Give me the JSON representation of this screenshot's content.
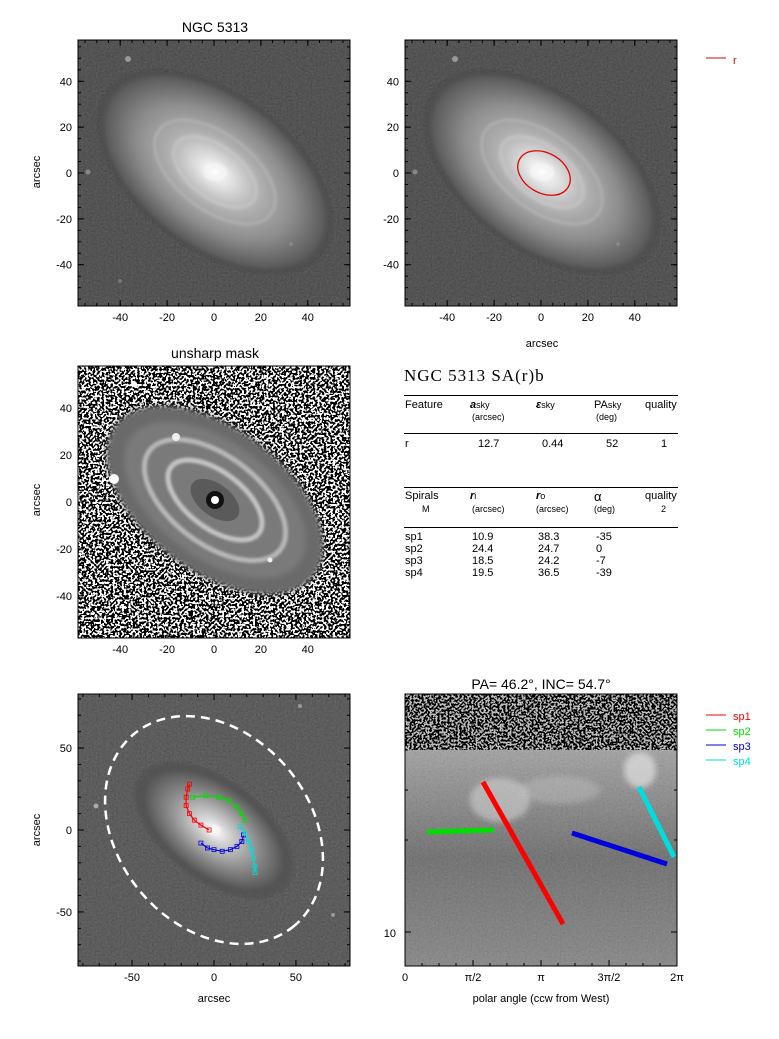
{
  "colors": {
    "r_feature": "#e00000",
    "sp1": "#ff0000",
    "sp2": "#00dd00",
    "sp3": "#0000dd",
    "sp4": "#00dddd",
    "ellipse": "#ffffff"
  },
  "panels": {
    "galaxy": {
      "title": "NGC 5313",
      "ylabel": "arcsec",
      "xticks": [
        -40,
        -20,
        0,
        20,
        40
      ],
      "yticks": [
        -40,
        -20,
        0,
        20,
        40
      ],
      "range": [
        -58,
        58
      ]
    },
    "overlay": {
      "xlabel": "arcsec",
      "xticks": [
        -40,
        -20,
        0,
        20,
        40
      ],
      "yticks": [
        -40,
        -20,
        0,
        20,
        40
      ],
      "legend": [
        {
          "label": "r",
          "color": "#e00000"
        }
      ],
      "ellipse": {
        "semi_major_arcsec": 12.7,
        "ellipticity": 0.44,
        "pa_deg": 52
      }
    },
    "unsharp": {
      "title": "unsharp mask",
      "ylabel": "arcsec",
      "xticks": [
        -40,
        -20,
        0,
        20,
        40
      ],
      "yticks": [
        -40,
        -20,
        0,
        20,
        40
      ]
    },
    "arms": {
      "xlabel": "arcsec",
      "ylabel": "arcsec",
      "xticks": [
        -50,
        0,
        50
      ],
      "yticks": [
        -50,
        0,
        50
      ],
      "range": [
        -83,
        83
      ]
    },
    "polar": {
      "title": "PA=  46.2°, INC=  54.7°",
      "xlabel": "polar angle (ccw from West)",
      "xticks": [
        "0",
        "π/2",
        "π",
        "3π/2",
        "2π"
      ],
      "ytick_label": "10",
      "legend": [
        {
          "label": "sp1",
          "color": "#ff0000"
        },
        {
          "label": "sp2",
          "color": "#00dd00"
        },
        {
          "label": "sp3",
          "color": "#0000dd"
        },
        {
          "label": "sp4",
          "color": "#00dddd"
        }
      ]
    }
  },
  "table": {
    "heading": "NGC 5313  SA(r)b",
    "features_header": {
      "feature": "Feature",
      "a": "a",
      "a_sub": "sky",
      "a_unit": "(arcsec)",
      "eps": "ε",
      "eps_sub": "sky",
      "pa": "PA",
      "pa_sub": "sky",
      "pa_unit": "(deg)",
      "quality": "quality"
    },
    "features": [
      {
        "name": "r",
        "a": "12.7",
        "eps": "0.44",
        "pa": "52",
        "quality": "1"
      }
    ],
    "spirals_header": {
      "spirals": "Spirals",
      "spirals_sub": "M",
      "ri": "r",
      "ri_sub": "i",
      "ri_unit": "(arcsec)",
      "ro": "r",
      "ro_sub": "o",
      "ro_unit": "(arcsec)",
      "alpha": "α",
      "alpha_unit": "(deg)",
      "quality": "quality",
      "quality_sub": "2"
    },
    "spirals": [
      {
        "name": "sp1",
        "ri": "10.9",
        "ro": "38.3",
        "alpha": "-35"
      },
      {
        "name": "sp2",
        "ri": "24.4",
        "ro": "24.7",
        "alpha": "0"
      },
      {
        "name": "sp3",
        "ri": "18.5",
        "ro": "24.2",
        "alpha": "-7"
      },
      {
        "name": "sp4",
        "ri": "19.5",
        "ro": "36.5",
        "alpha": "-39"
      }
    ]
  },
  "chart_data": [
    {
      "type": "heatmap",
      "title": "NGC 5313",
      "ylabel": "arcsec",
      "xlim": [
        -58,
        58
      ],
      "ylim": [
        -58,
        58
      ],
      "xticks": [
        -40,
        -20,
        0,
        20,
        40
      ],
      "yticks": [
        -40,
        -20,
        0,
        20,
        40
      ]
    },
    {
      "type": "heatmap",
      "xlabel": "arcsec",
      "xlim": [
        -58,
        58
      ],
      "ylim": [
        -58,
        58
      ],
      "legend": [
        "r"
      ],
      "ellipse": {
        "name": "r",
        "a": 12.7,
        "ellipticity": 0.44,
        "pa": 52
      }
    },
    {
      "type": "heatmap",
      "title": "unsharp mask",
      "ylabel": "arcsec",
      "xlim": [
        -58,
        58
      ],
      "ylim": [
        -58,
        58
      ]
    },
    {
      "type": "scatter",
      "xlabel": "arcsec",
      "ylabel": "arcsec",
      "xlim": [
        -83,
        83
      ],
      "ylim": [
        -83,
        83
      ],
      "xticks": [
        -50,
        0,
        50
      ],
      "yticks": [
        -50,
        0,
        50
      ]
    },
    {
      "type": "line",
      "title": "PA=  46.2°, INC=  54.7°",
      "xlabel": "polar angle (ccw from West)",
      "xlim": [
        0,
        6.2832
      ],
      "legend": [
        "sp1",
        "sp2",
        "sp3",
        "sp4"
      ],
      "series": [
        {
          "name": "sp1",
          "alpha_deg": -35,
          "r_inner": 10.9,
          "r_outer": 38.3
        },
        {
          "name": "sp2",
          "alpha_deg": 0,
          "r_inner": 24.4,
          "r_outer": 24.7
        },
        {
          "name": "sp3",
          "alpha_deg": -7,
          "r_inner": 18.5,
          "r_outer": 24.2
        },
        {
          "name": "sp4",
          "alpha_deg": -39,
          "r_inner": 19.5,
          "r_outer": 36.5
        }
      ]
    }
  ]
}
